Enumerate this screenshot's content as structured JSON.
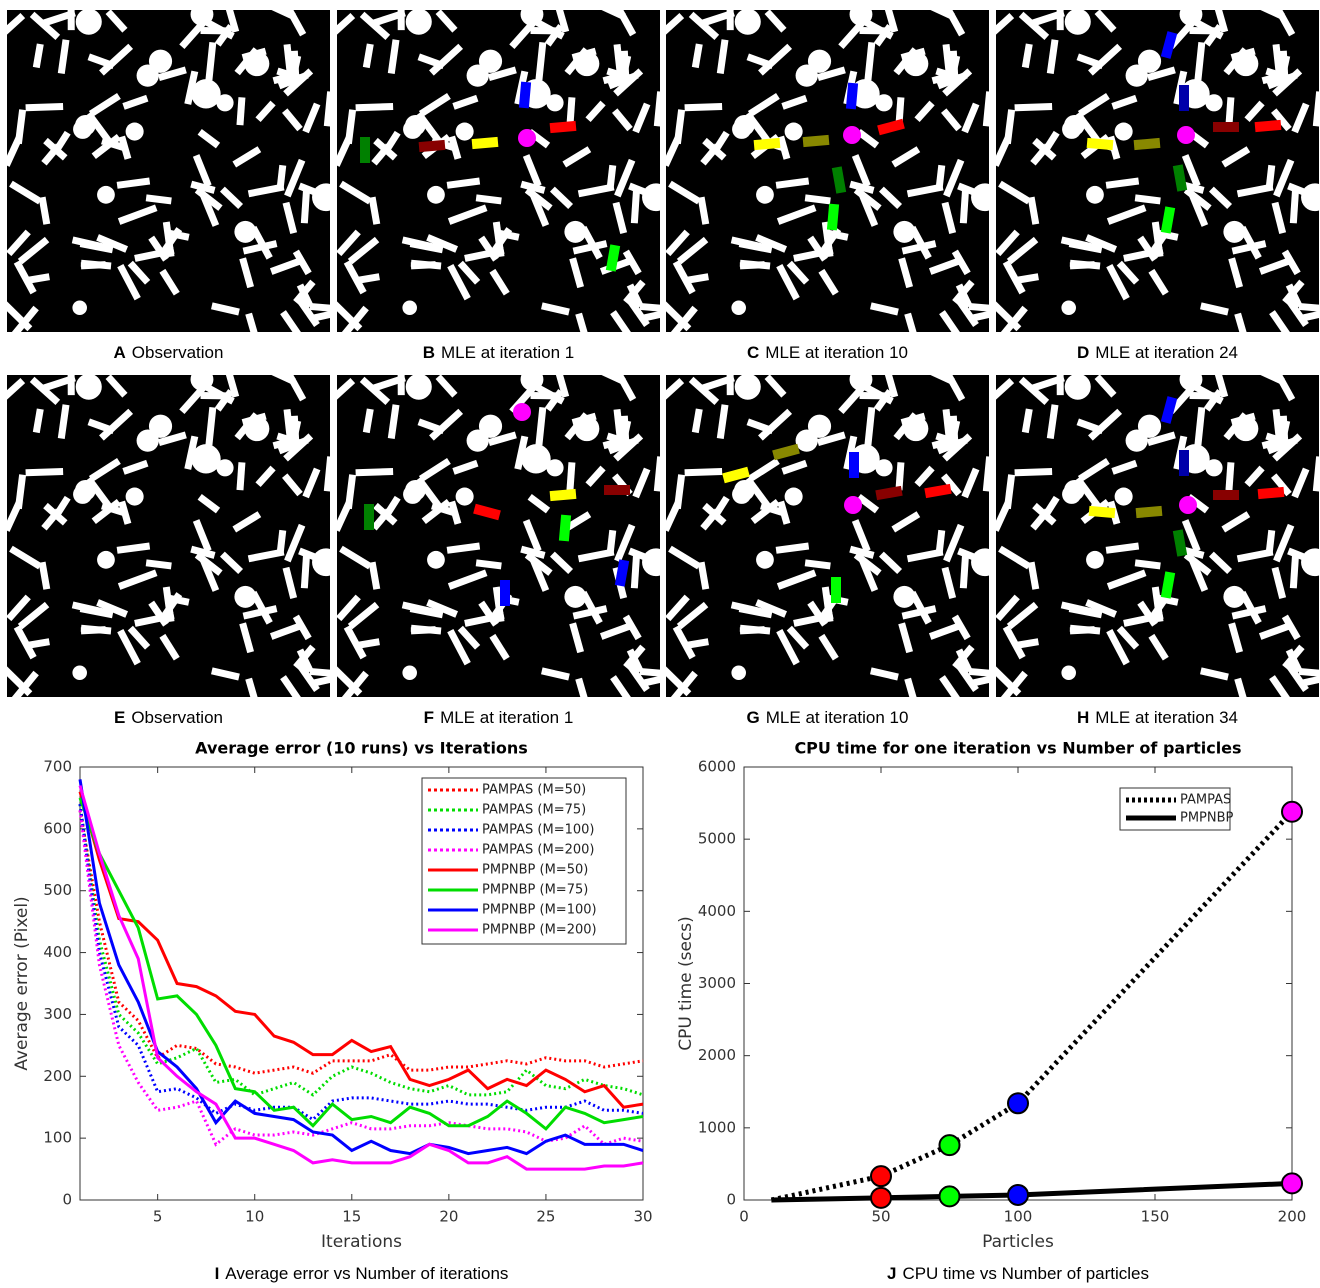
{
  "panels": [
    {
      "letter": "A",
      "caption": "Observation"
    },
    {
      "letter": "B",
      "caption": "MLE at iteration 1"
    },
    {
      "letter": "C",
      "caption": "MLE at iteration 10"
    },
    {
      "letter": "D",
      "caption": "MLE at iteration 24"
    },
    {
      "letter": "E",
      "caption": "Observation"
    },
    {
      "letter": "F",
      "caption": "MLE at iteration 1"
    },
    {
      "letter": "G",
      "caption": "MLE at iteration 10"
    },
    {
      "letter": "H",
      "caption": "MLE at iteration 34"
    }
  ],
  "chart_data": [
    {
      "type": "line",
      "title": "Average error (10 runs) vs Iterations",
      "caption_letter": "I",
      "caption": "Average error vs Number of iterations",
      "x_label": "Iterations",
      "y_label": "Average error (Pixel)",
      "xlim": [
        1,
        30
      ],
      "xticks": [
        5,
        10,
        15,
        20,
        25,
        30
      ],
      "ylim": [
        0,
        700
      ],
      "yticks": [
        0,
        100,
        200,
        300,
        400,
        500,
        600,
        700
      ],
      "legend": "upper right",
      "x": [
        1,
        2,
        3,
        4,
        5,
        6,
        7,
        8,
        9,
        10,
        11,
        12,
        13,
        14,
        15,
        16,
        17,
        18,
        19,
        20,
        21,
        22,
        23,
        24,
        25,
        26,
        27,
        28,
        29,
        30
      ],
      "series": [
        {
          "name": "PAMPAS (M=50)",
          "color": "#ff0000",
          "style": "dotted",
          "values": [
            630,
            450,
            320,
            290,
            230,
            250,
            245,
            220,
            215,
            205,
            210,
            215,
            205,
            225,
            225,
            225,
            235,
            210,
            210,
            215,
            215,
            220,
            225,
            220,
            230,
            225,
            225,
            215,
            220,
            225
          ]
        },
        {
          "name": "PAMPAS (M=75)",
          "color": "#00dd00",
          "style": "dotted",
          "values": [
            640,
            420,
            300,
            270,
            220,
            230,
            245,
            190,
            195,
            170,
            180,
            190,
            170,
            200,
            215,
            205,
            190,
            180,
            175,
            185,
            170,
            170,
            175,
            210,
            185,
            180,
            195,
            185,
            180,
            170
          ]
        },
        {
          "name": "PAMPAS (M=100)",
          "color": "#0000ff",
          "style": "dotted",
          "values": [
            640,
            400,
            280,
            250,
            175,
            180,
            165,
            140,
            155,
            145,
            150,
            150,
            130,
            160,
            165,
            165,
            160,
            155,
            155,
            160,
            155,
            155,
            150,
            145,
            150,
            150,
            160,
            145,
            145,
            140
          ]
        },
        {
          "name": "PAMPAS (M=200)",
          "color": "#ff00ff",
          "style": "dotted",
          "values": [
            630,
            380,
            250,
            190,
            145,
            150,
            160,
            90,
            115,
            105,
            105,
            110,
            105,
            115,
            125,
            115,
            115,
            120,
            120,
            125,
            120,
            115,
            115,
            110,
            95,
            100,
            120,
            90,
            100,
            95
          ]
        },
        {
          "name": "PMPNBP (M=50)",
          "color": "#ff0000",
          "style": "solid",
          "values": [
            660,
            550,
            455,
            450,
            420,
            350,
            345,
            330,
            305,
            300,
            265,
            255,
            235,
            235,
            258,
            240,
            248,
            195,
            185,
            195,
            210,
            180,
            195,
            185,
            210,
            195,
            175,
            185,
            150,
            155
          ]
        },
        {
          "name": "PMPNBP (M=75)",
          "color": "#00dd00",
          "style": "solid",
          "values": [
            650,
            560,
            500,
            440,
            325,
            330,
            300,
            250,
            180,
            175,
            145,
            150,
            120,
            155,
            130,
            135,
            125,
            150,
            140,
            120,
            120,
            135,
            160,
            140,
            115,
            150,
            140,
            125,
            130,
            135
          ]
        },
        {
          "name": "PMPNBP (M=100)",
          "color": "#0000ff",
          "style": "solid",
          "values": [
            680,
            480,
            380,
            320,
            240,
            215,
            180,
            125,
            160,
            140,
            135,
            130,
            110,
            105,
            80,
            95,
            80,
            75,
            90,
            85,
            75,
            80,
            85,
            75,
            95,
            105,
            90,
            90,
            90,
            80
          ]
        },
        {
          "name": "PMPNBP (M=200)",
          "color": "#ff00ff",
          "style": "solid",
          "values": [
            670,
            560,
            460,
            390,
            230,
            200,
            175,
            155,
            100,
            100,
            90,
            80,
            60,
            65,
            60,
            60,
            60,
            70,
            90,
            80,
            60,
            60,
            70,
            50,
            50,
            50,
            50,
            55,
            55,
            60
          ]
        }
      ]
    },
    {
      "type": "line",
      "title": "CPU time for one iteration vs Number of particles",
      "caption_letter": "J",
      "caption": "CPU time vs Number of particles",
      "x_label": "Particles",
      "y_label": "CPU time (secs)",
      "xlim": [
        0,
        200
      ],
      "xticks": [
        0,
        50,
        100,
        150,
        200
      ],
      "ylim": [
        0,
        6000
      ],
      "yticks": [
        0,
        1000,
        2000,
        3000,
        4000,
        5000,
        6000
      ],
      "legend": "upper right",
      "x": [
        10,
        50,
        75,
        100,
        200
      ],
      "series": [
        {
          "name": "PAMPAS",
          "color": "#000000",
          "style": "dotted",
          "values": [
            0,
            330,
            760,
            1340,
            5380
          ],
          "marker_colors": [
            null,
            "#ff0000",
            "#00ff00",
            "#0000ff",
            "#ff00ff"
          ]
        },
        {
          "name": "PMPNBP",
          "color": "#000000",
          "style": "solid",
          "values": [
            0,
            30,
            50,
            70,
            230
          ],
          "marker_colors": [
            null,
            "#ff0000",
            "#00ff00",
            "#0000ff",
            "#ff00ff"
          ]
        }
      ]
    }
  ]
}
